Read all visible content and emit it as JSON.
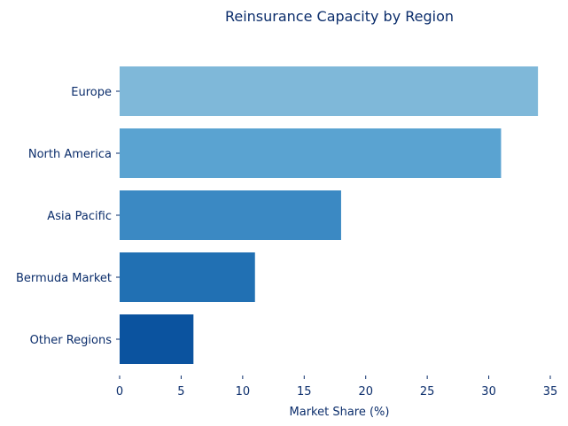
{
  "chart_data": {
    "type": "bar",
    "orientation": "horizontal",
    "title": "Reinsurance Capacity by Region",
    "xlabel": "Market Share (%)",
    "ylabel": "",
    "categories": [
      "Europe",
      "North America",
      "Asia Pacific",
      "Bermuda Market",
      "Other Regions"
    ],
    "values": [
      34,
      31,
      18,
      11,
      6
    ],
    "xlim": [
      0,
      35
    ],
    "xticks": [
      0,
      5,
      10,
      15,
      20,
      25,
      30,
      35
    ],
    "grid": false,
    "legend": "none",
    "colors": [
      "#7fb8d9",
      "#5aa3d1",
      "#3b89c3",
      "#2170b3",
      "#0b539f"
    ],
    "text_color": "#0b2d6b"
  }
}
